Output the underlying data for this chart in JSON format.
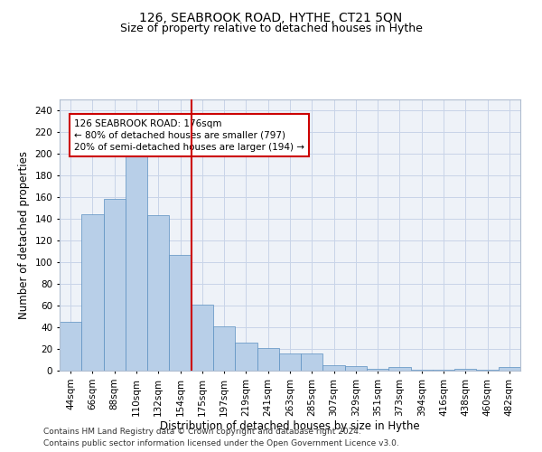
{
  "title": "126, SEABROOK ROAD, HYTHE, CT21 5QN",
  "subtitle": "Size of property relative to detached houses in Hythe",
  "xlabel": "Distribution of detached houses by size in Hythe",
  "ylabel": "Number of detached properties",
  "categories": [
    "44sqm",
    "66sqm",
    "88sqm",
    "110sqm",
    "132sqm",
    "154sqm",
    "175sqm",
    "197sqm",
    "219sqm",
    "241sqm",
    "263sqm",
    "285sqm",
    "307sqm",
    "329sqm",
    "351sqm",
    "373sqm",
    "394sqm",
    "416sqm",
    "438sqm",
    "460sqm",
    "482sqm"
  ],
  "values": [
    45,
    144,
    158,
    203,
    143,
    107,
    61,
    41,
    26,
    21,
    16,
    16,
    5,
    4,
    2,
    3,
    1,
    1,
    2,
    1,
    3
  ],
  "bar_color": "#b8cfe8",
  "bar_edge_color": "#5a8fc0",
  "vline_x": 5.5,
  "annotation_text": "126 SEABROOK ROAD: 176sqm\n← 80% of detached houses are smaller (797)\n20% of semi-detached houses are larger (194) →",
  "annotation_box_facecolor": "#ffffff",
  "annotation_box_edgecolor": "#cc0000",
  "vline_color": "#cc0000",
  "ylim": [
    0,
    250
  ],
  "yticks": [
    0,
    20,
    40,
    60,
    80,
    100,
    120,
    140,
    160,
    180,
    200,
    220,
    240
  ],
  "grid_color": "#c8d4e8",
  "bg_color": "#eef2f8",
  "footer_line1": "Contains HM Land Registry data © Crown copyright and database right 2024.",
  "footer_line2": "Contains public sector information licensed under the Open Government Licence v3.0.",
  "title_fontsize": 10,
  "subtitle_fontsize": 9,
  "xlabel_fontsize": 8.5,
  "ylabel_fontsize": 8.5,
  "tick_fontsize": 7.5,
  "annot_fontsize": 7.5,
  "footer_fontsize": 6.5
}
